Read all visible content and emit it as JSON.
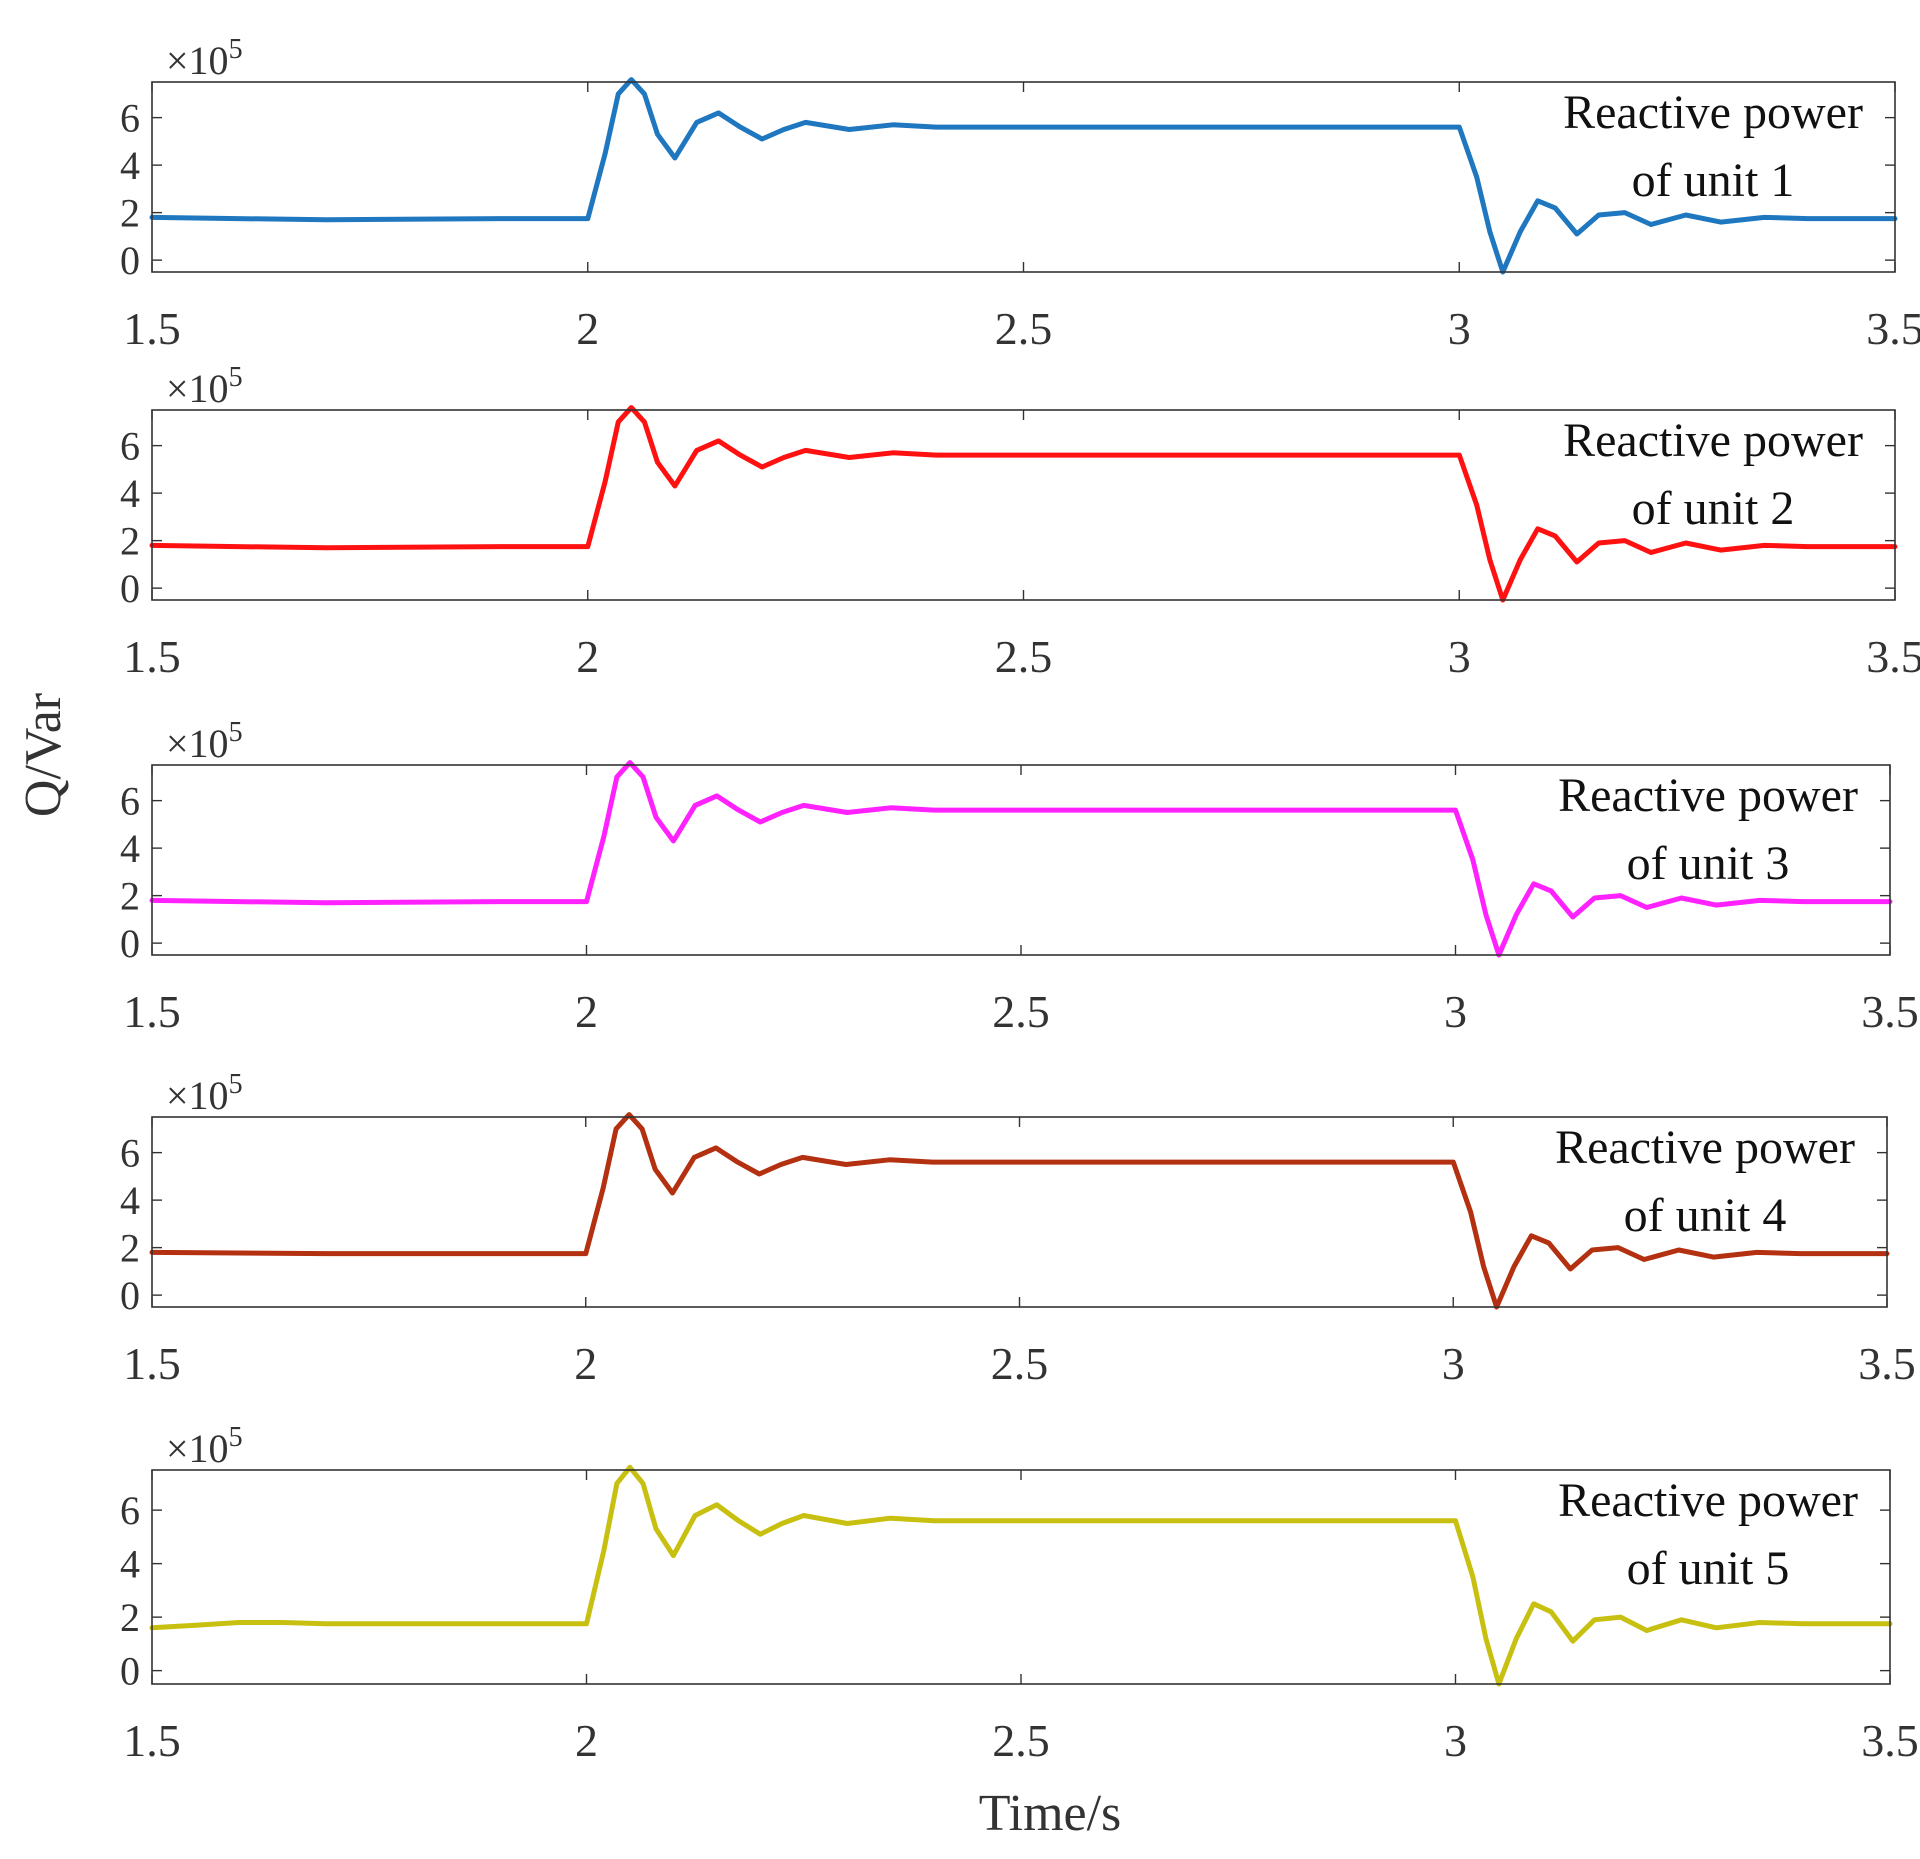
{
  "chart_data": [
    {
      "type": "line",
      "title": "",
      "xlabel": "",
      "ylabel": "Q/Var",
      "xlim": [
        1.5,
        3.5
      ],
      "ylim": [
        -0.5,
        7.5
      ],
      "x_ticks": [
        "1.5",
        "2",
        "2.5",
        "3",
        "3.5"
      ],
      "y_ticks": [
        "0",
        "2",
        "4",
        "6"
      ],
      "y_multiplier": "×10",
      "y_multiplier_exp": "5",
      "legend": [
        "Reactive power",
        "of unit 1"
      ],
      "color": "#1f77c0",
      "series": [
        {
          "name": "Reactive power of unit 1",
          "x": [
            1.5,
            1.7,
            1.9,
            2.0,
            2.02,
            2.035,
            2.05,
            2.065,
            2.08,
            2.1,
            2.125,
            2.15,
            2.175,
            2.2,
            2.225,
            2.25,
            2.3,
            2.35,
            2.4,
            2.5,
            2.7,
            2.9,
            3.0,
            3.02,
            3.035,
            3.05,
            3.07,
            3.09,
            3.11,
            3.135,
            3.16,
            3.19,
            3.22,
            3.26,
            3.3,
            3.35,
            3.4,
            3.5
          ],
          "y": [
            1.8,
            1.7,
            1.75,
            1.75,
            4.5,
            7.0,
            7.6,
            7.0,
            5.3,
            4.3,
            5.8,
            6.2,
            5.6,
            5.1,
            5.5,
            5.8,
            5.5,
            5.7,
            5.6,
            5.6,
            5.6,
            5.6,
            5.6,
            3.5,
            1.2,
            -0.5,
            1.2,
            2.5,
            2.2,
            1.1,
            1.9,
            2.0,
            1.5,
            1.9,
            1.6,
            1.8,
            1.75,
            1.75
          ]
        }
      ]
    },
    {
      "type": "line",
      "title": "",
      "xlabel": "",
      "ylabel": "Q/Var",
      "xlim": [
        1.5,
        3.5
      ],
      "ylim": [
        -0.5,
        7.5
      ],
      "x_ticks": [
        "1.5",
        "2",
        "2.5",
        "3",
        "3.5"
      ],
      "y_ticks": [
        "0",
        "2",
        "4",
        "6"
      ],
      "y_multiplier": "×10",
      "y_multiplier_exp": "5",
      "legend": [
        "Reactive power",
        "of unit 2"
      ],
      "color": "#ff1111",
      "series": [
        {
          "name": "Reactive power of unit 2",
          "x": [
            1.5,
            1.7,
            1.9,
            2.0,
            2.02,
            2.035,
            2.05,
            2.065,
            2.08,
            2.1,
            2.125,
            2.15,
            2.175,
            2.2,
            2.225,
            2.25,
            2.3,
            2.35,
            2.4,
            2.5,
            2.7,
            2.9,
            3.0,
            3.02,
            3.035,
            3.05,
            3.07,
            3.09,
            3.11,
            3.135,
            3.16,
            3.19,
            3.22,
            3.26,
            3.3,
            3.35,
            3.4,
            3.5
          ],
          "y": [
            1.8,
            1.7,
            1.75,
            1.75,
            4.5,
            7.0,
            7.6,
            7.0,
            5.3,
            4.3,
            5.8,
            6.2,
            5.6,
            5.1,
            5.5,
            5.8,
            5.5,
            5.7,
            5.6,
            5.6,
            5.6,
            5.6,
            5.6,
            3.5,
            1.2,
            -0.5,
            1.2,
            2.5,
            2.2,
            1.1,
            1.9,
            2.0,
            1.5,
            1.9,
            1.6,
            1.8,
            1.75,
            1.75
          ]
        }
      ]
    },
    {
      "type": "line",
      "title": "",
      "xlabel": "",
      "ylabel": "Q/Var",
      "xlim": [
        1.5,
        3.5
      ],
      "ylim": [
        -0.5,
        7.5
      ],
      "x_ticks": [
        "1.5",
        "2",
        "2.5",
        "3",
        "3.5"
      ],
      "y_ticks": [
        "0",
        "2",
        "4",
        "6"
      ],
      "y_multiplier": "×10",
      "y_multiplier_exp": "5",
      "legend": [
        "Reactive power",
        "of unit 3"
      ],
      "color": "#ff22ff",
      "series": [
        {
          "name": "Reactive power of unit 3",
          "x": [
            1.5,
            1.7,
            1.9,
            2.0,
            2.02,
            2.035,
            2.05,
            2.065,
            2.08,
            2.1,
            2.125,
            2.15,
            2.175,
            2.2,
            2.225,
            2.25,
            2.3,
            2.35,
            2.4,
            2.5,
            2.7,
            2.9,
            3.0,
            3.02,
            3.035,
            3.05,
            3.07,
            3.09,
            3.11,
            3.135,
            3.16,
            3.19,
            3.22,
            3.26,
            3.3,
            3.35,
            3.4,
            3.5
          ],
          "y": [
            1.8,
            1.7,
            1.75,
            1.75,
            4.5,
            7.0,
            7.6,
            7.0,
            5.3,
            4.3,
            5.8,
            6.2,
            5.6,
            5.1,
            5.5,
            5.8,
            5.5,
            5.7,
            5.6,
            5.6,
            5.6,
            5.6,
            5.6,
            3.5,
            1.2,
            -0.5,
            1.2,
            2.5,
            2.2,
            1.1,
            1.9,
            2.0,
            1.5,
            1.9,
            1.6,
            1.8,
            1.75,
            1.75
          ]
        }
      ]
    },
    {
      "type": "line",
      "title": "",
      "xlabel": "",
      "ylabel": "Q/Var",
      "xlim": [
        1.5,
        3.5
      ],
      "ylim": [
        -0.5,
        7.5
      ],
      "x_ticks": [
        "1.5",
        "2",
        "2.5",
        "3",
        "3.5"
      ],
      "y_ticks": [
        "0",
        "2",
        "4",
        "6"
      ],
      "y_multiplier": "×10",
      "y_multiplier_exp": "5",
      "legend": [
        "Reactive power",
        "of unit 4"
      ],
      "color": "#b33010",
      "series": [
        {
          "name": "Reactive power of unit 4",
          "x": [
            1.5,
            1.7,
            1.9,
            2.0,
            2.02,
            2.035,
            2.05,
            2.065,
            2.08,
            2.1,
            2.125,
            2.15,
            2.175,
            2.2,
            2.225,
            2.25,
            2.3,
            2.35,
            2.4,
            2.5,
            2.7,
            2.9,
            3.0,
            3.02,
            3.035,
            3.05,
            3.07,
            3.09,
            3.11,
            3.135,
            3.16,
            3.19,
            3.22,
            3.26,
            3.3,
            3.35,
            3.4,
            3.5
          ],
          "y": [
            1.8,
            1.75,
            1.75,
            1.75,
            4.5,
            7.0,
            7.6,
            7.0,
            5.3,
            4.3,
            5.8,
            6.2,
            5.6,
            5.1,
            5.5,
            5.8,
            5.5,
            5.7,
            5.6,
            5.6,
            5.6,
            5.6,
            5.6,
            3.5,
            1.2,
            -0.5,
            1.2,
            2.5,
            2.2,
            1.1,
            1.9,
            2.0,
            1.5,
            1.9,
            1.6,
            1.8,
            1.75,
            1.75
          ]
        }
      ]
    },
    {
      "type": "line",
      "title": "",
      "xlabel": "Time/s",
      "ylabel": "Q/Var",
      "xlim": [
        1.5,
        3.5
      ],
      "ylim": [
        -0.5,
        7.5
      ],
      "x_ticks": [
        "1.5",
        "2",
        "2.5",
        "3",
        "3.5"
      ],
      "y_ticks": [
        "0",
        "2",
        "4",
        "6"
      ],
      "y_multiplier": "×10",
      "y_multiplier_exp": "5",
      "legend": [
        "Reactive power",
        "of unit 5"
      ],
      "color": "#c8c010",
      "series": [
        {
          "name": "Reactive power of unit 5",
          "x": [
            1.5,
            1.55,
            1.6,
            1.65,
            1.7,
            1.8,
            1.9,
            2.0,
            2.02,
            2.035,
            2.05,
            2.065,
            2.08,
            2.1,
            2.125,
            2.15,
            2.175,
            2.2,
            2.225,
            2.25,
            2.3,
            2.35,
            2.4,
            2.5,
            2.7,
            2.9,
            3.0,
            3.02,
            3.035,
            3.05,
            3.07,
            3.09,
            3.11,
            3.135,
            3.16,
            3.19,
            3.22,
            3.26,
            3.3,
            3.35,
            3.4,
            3.5
          ],
          "y": [
            1.6,
            1.7,
            1.8,
            1.8,
            1.75,
            1.75,
            1.75,
            1.75,
            4.5,
            7.0,
            7.6,
            7.0,
            5.3,
            4.3,
            5.8,
            6.2,
            5.6,
            5.1,
            5.5,
            5.8,
            5.5,
            5.7,
            5.6,
            5.6,
            5.6,
            5.6,
            5.6,
            3.5,
            1.2,
            -0.5,
            1.2,
            2.5,
            2.2,
            1.1,
            1.9,
            2.0,
            1.5,
            1.9,
            1.6,
            1.8,
            1.75,
            1.75
          ]
        }
      ]
    }
  ],
  "figure": {
    "ylabel": "Q/Var",
    "xlabel": "Time/s"
  }
}
